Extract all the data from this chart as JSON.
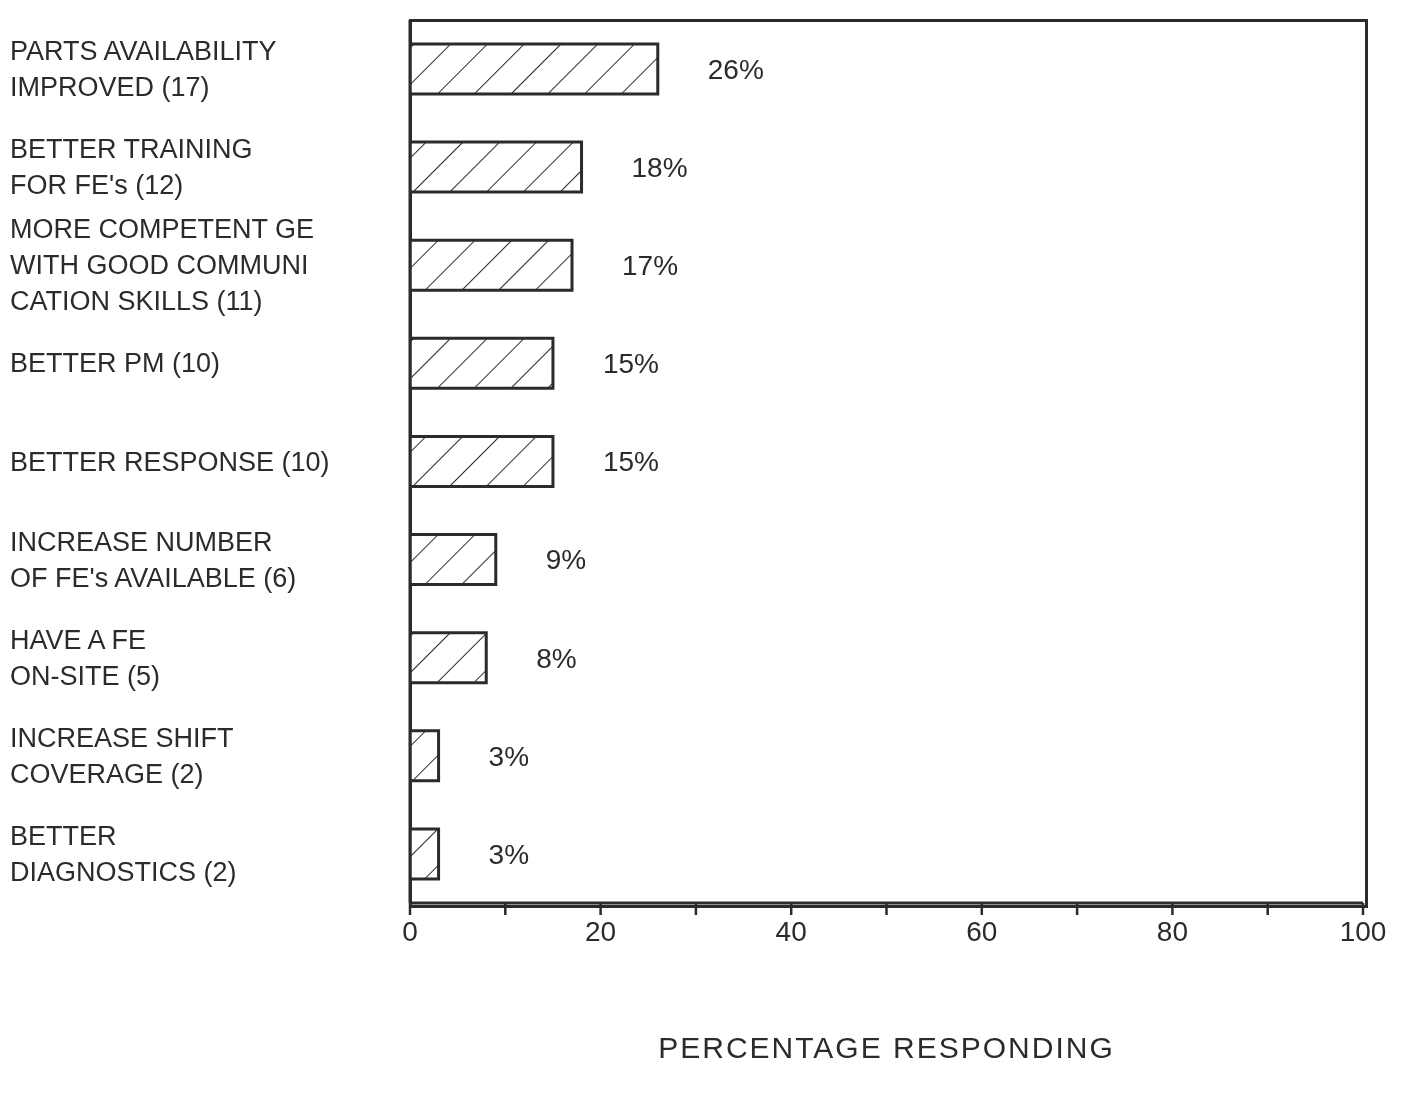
{
  "chart_data": {
    "type": "bar",
    "orientation": "horizontal",
    "xlabel": "PERCENTAGE RESPONDING",
    "categories": [
      "PARTS AVAILABILITY\nIMPROVED (17)",
      "BETTER TRAINING\nFOR FE's (12)",
      "MORE COMPETENT  GE\nWITH GOOD COMMUNI\nCATION SKILLS (11)",
      "BETTER PM (10)",
      "BETTER RESPONSE (10)",
      "INCREASE NUMBER\nOF FE's AVAILABLE (6)",
      "HAVE A FE\nON-SITE (5)",
      "INCREASE SHIFT\nCOVERAGE (2)",
      "BETTER\nDIAGNOSTICS (2)"
    ],
    "values": [
      26,
      18,
      17,
      15,
      15,
      9,
      8,
      3,
      3
    ],
    "value_labels": [
      "26%",
      "18%",
      "17%",
      "15%",
      "15%",
      "9%",
      "8%",
      "3%",
      "3%"
    ],
    "color": "#2b2b2b",
    "xlim": [
      0,
      100
    ],
    "xticks": [
      0,
      {
        "value": 10,
        "label": null
      },
      20,
      {
        "value": 30,
        "label": null
      },
      40,
      {
        "value": 50,
        "label": null
      },
      60,
      {
        "value": 70,
        "label": null
      },
      80,
      {
        "value": 90,
        "label": null
      },
      100
    ],
    "grid": false
  }
}
